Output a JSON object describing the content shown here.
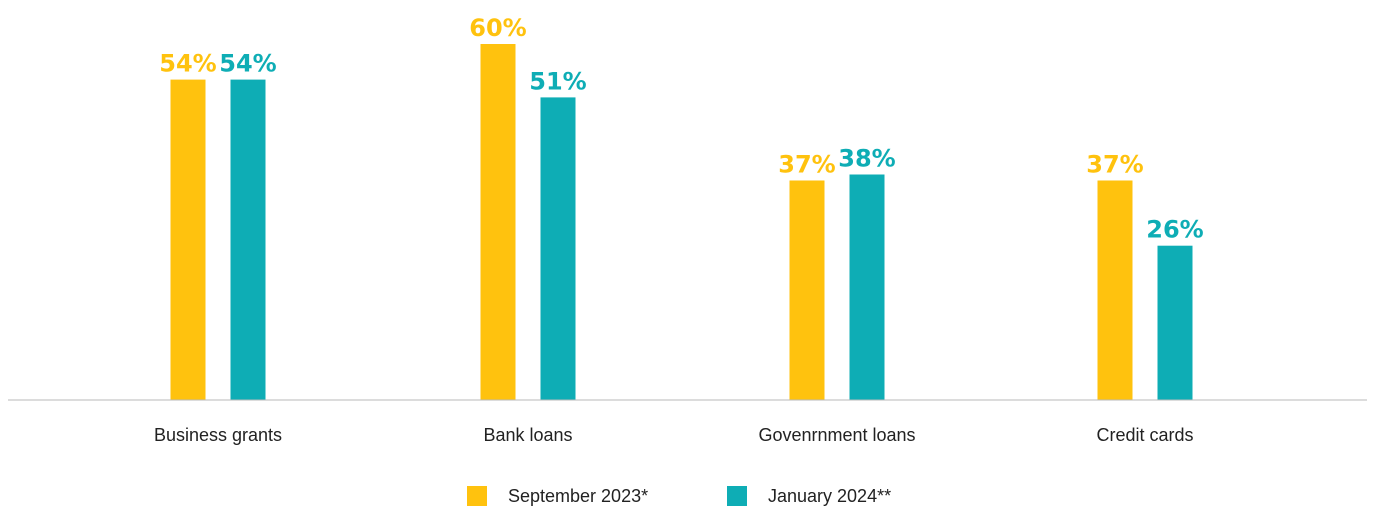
{
  "chart_data": {
    "type": "bar",
    "title": "",
    "xlabel": "",
    "ylabel": "",
    "ylim": [
      0,
      60
    ],
    "grid": false,
    "legend_placement": "bottom-center",
    "categories": [
      "Business grants",
      "Bank loans",
      "Govenrnment loans",
      "Credit cards"
    ],
    "series": [
      {
        "name": "September 2023*",
        "color": "#FFC20E",
        "values": [
          54,
          60,
          37,
          37
        ],
        "labels": [
          "54%",
          "60%",
          "37%",
          "37%"
        ]
      },
      {
        "name": "January 2024**",
        "color": "#0EADB5",
        "values": [
          54,
          51,
          38,
          26
        ],
        "labels": [
          "54%",
          "51%",
          "38%",
          "26%"
        ]
      }
    ]
  },
  "colors": {
    "axis": "#b9b9b9",
    "text": "#222222"
  }
}
